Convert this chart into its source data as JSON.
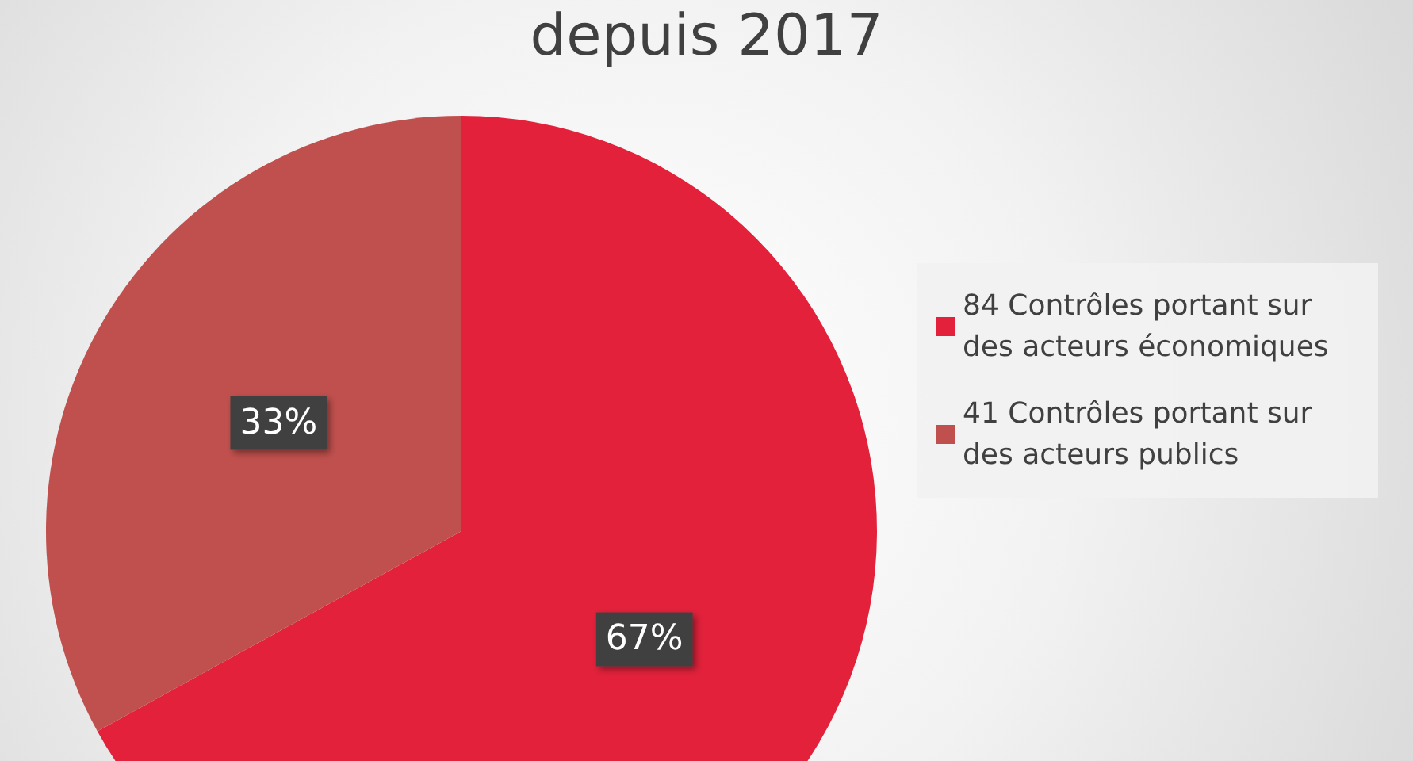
{
  "chart_data": {
    "type": "pie",
    "title": "depuis 2017",
    "categories": [
      "84 Contrôles portant sur des acteurs économiques",
      "41 Contrôles portant sur des acteurs publics"
    ],
    "values": [
      67,
      33
    ],
    "value_labels": [
      "67%",
      "33%"
    ],
    "colors": [
      "#e3213b",
      "#c0504d"
    ],
    "legend": "right"
  }
}
